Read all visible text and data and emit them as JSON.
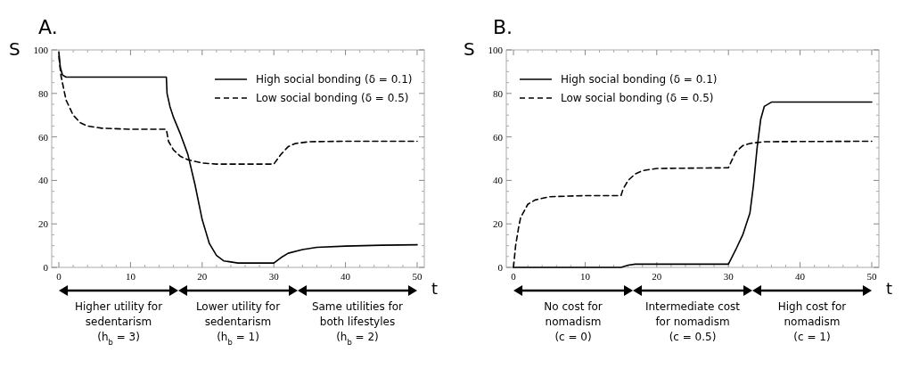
{
  "chart_data": [
    {
      "type": "line",
      "title": "A.",
      "xlabel": "t",
      "ylabel": "S",
      "xlim": [
        -1,
        51
      ],
      "ylim": [
        0,
        100
      ],
      "xticks": [
        0,
        10,
        20,
        30,
        40,
        50
      ],
      "yticks": [
        0,
        20,
        40,
        60,
        80,
        100
      ],
      "legend": "top right",
      "annotations": [
        "Higher utility for sedentarism (h$_{b}$ = 3)",
        "Lower utility for sedentarism (h$_{b}$ = 1)",
        "Same utilities for both lifestyles (h$_{b}$ = 2)"
      ],
      "series": [
        {
          "name": "High social bonding (δ = 0.1)",
          "color": "#000000",
          "line_style": "solid",
          "x": [
            0,
            0.2,
            0.5,
            1,
            15,
            15.1,
            15.5,
            16,
            17,
            18,
            19,
            20,
            21,
            22,
            23,
            25,
            30,
            31,
            32,
            34,
            36,
            40,
            45,
            50
          ],
          "values": [
            99,
            92,
            88.5,
            87.5,
            87.5,
            80,
            74,
            69,
            61,
            52,
            38,
            22,
            11,
            5.5,
            3,
            2,
            2,
            4.5,
            6.5,
            8.2,
            9.2,
            9.8,
            10.2,
            10.4
          ]
        },
        {
          "name": "Low social bonding (δ = 0.5)",
          "color": "#000000",
          "line_style": "dashed",
          "x": [
            0,
            0.3,
            1,
            2,
            3,
            4,
            6,
            10,
            15,
            15.3,
            16,
            17,
            18,
            20,
            22,
            30,
            31,
            32,
            33,
            35,
            40,
            50
          ],
          "values": [
            97,
            88,
            77,
            70,
            66.5,
            65,
            64,
            63.5,
            63.5,
            58,
            54,
            51,
            49.5,
            48,
            47.5,
            47.5,
            52,
            55.5,
            57,
            57.8,
            58,
            58
          ]
        }
      ]
    },
    {
      "type": "line",
      "title": "B.",
      "xlabel": "t",
      "ylabel": "S",
      "xlim": [
        -1,
        51
      ],
      "ylim": [
        0,
        100
      ],
      "xticks": [
        0,
        10,
        20,
        30,
        40,
        50
      ],
      "yticks": [
        0,
        20,
        40,
        60,
        80,
        100
      ],
      "legend": "top left",
      "annotations": [
        "No cost for nomadism (c = 0)",
        "Intermediate cost for nomadism (c = 0.5)",
        "High cost for nomadism (c = 1)"
      ],
      "series": [
        {
          "name": "High social bonding (δ = 0.1)",
          "color": "#000000",
          "line_style": "solid",
          "x": [
            0,
            15,
            16,
            17,
            30,
            31,
            32,
            33,
            33.5,
            34,
            34.5,
            35,
            36,
            50
          ],
          "values": [
            0,
            0,
            1,
            1.5,
            1.5,
            8,
            15,
            25,
            38,
            55,
            68,
            74,
            76,
            76
          ]
        },
        {
          "name": "Low social bonding (δ = 0.5)",
          "color": "#000000",
          "line_style": "dashed",
          "x": [
            0,
            0.3,
            0.7,
            1,
            2,
            3,
            5,
            10,
            15,
            15.3,
            16,
            17,
            18,
            20,
            30,
            30.3,
            31,
            32,
            33,
            35,
            50
          ],
          "values": [
            0,
            10,
            18,
            23,
            29,
            31,
            32.5,
            33,
            33,
            36,
            40,
            43,
            44.5,
            45.5,
            45.8,
            48,
            53,
            56,
            57,
            57.8,
            58
          ]
        }
      ]
    }
  ]
}
